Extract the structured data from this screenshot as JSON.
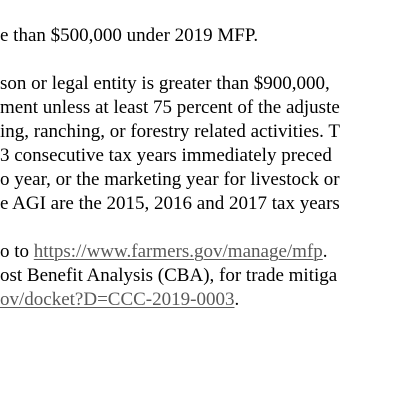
{
  "document": {
    "lines": [
      {
        "text": "e than $500,000 under 2019 MFP."
      },
      {
        "text": "son or legal entity is greater than $900,000,"
      },
      {
        "text": "ment unless at least 75 percent of the adjuste"
      },
      {
        "text": "ing, ranching, or forestry related activities.  T"
      },
      {
        "text": "3 consecutive tax years immediately preced"
      },
      {
        "text": "o year, or the marketing year for livestock or"
      },
      {
        "text": "e AGI are the 2015, 2016 and 2017 tax years"
      }
    ],
    "link_line": {
      "prefix": "o to ",
      "link": "https://www.farmers.gov/manage/mfp",
      "suffix": "."
    },
    "cba_line": {
      "text": "ost Benefit Analysis (CBA), for trade mitiga"
    },
    "docket_line": {
      "link": "ov/docket?D=CCC-2019-0003",
      "suffix": "."
    },
    "link_color": "#595959"
  }
}
